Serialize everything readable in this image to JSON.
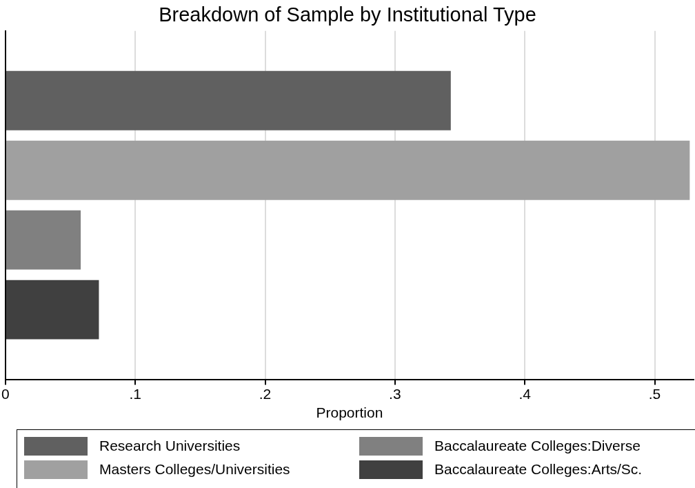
{
  "chart_data": {
    "type": "bar",
    "orientation": "horizontal",
    "title": "Breakdown of Sample by Institutional Type",
    "xlabel": "Proportion",
    "categories": [
      null
    ],
    "series": [
      {
        "name": "Research Universities",
        "color": "#606060",
        "values": [
          0.343
        ]
      },
      {
        "name": "Masters Colleges/Universities",
        "color": "#a0a0a0",
        "values": [
          0.527
        ]
      },
      {
        "name": "Baccalaureate Colleges:Diverse",
        "color": "#808080",
        "values": [
          0.058
        ]
      },
      {
        "name": "Baccalaureate Colleges:Arts/Sc.",
        "color": "#404040",
        "values": [
          0.072
        ]
      }
    ],
    "xlim": [
      0,
      0.53
    ],
    "xticks": [
      {
        "value": 0,
        "label": "0"
      },
      {
        "value": 0.1,
        "label": ".1"
      },
      {
        "value": 0.2,
        "label": ".2"
      },
      {
        "value": 0.3,
        "label": ".3"
      },
      {
        "value": 0.4,
        "label": ".4"
      },
      {
        "value": 0.5,
        "label": ".5"
      }
    ],
    "grid": "x",
    "legend": "bottom",
    "tick_labels": "x"
  }
}
